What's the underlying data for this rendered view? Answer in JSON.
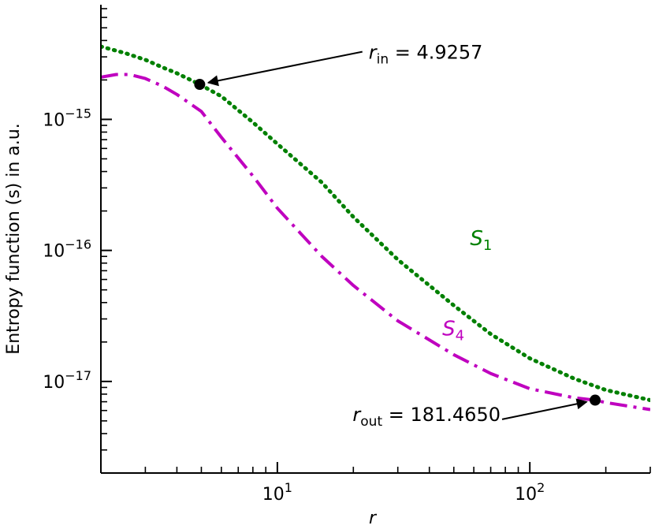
{
  "chart_data": {
    "type": "line",
    "title": "",
    "xlabel": "r",
    "ylabel": "Entropy function (s) in a.u.",
    "xscale": "log",
    "yscale": "log",
    "xlim": [
      2.0,
      300.0
    ],
    "ylim": [
      2e-18,
      7.5e-15
    ],
    "x_ticks": [
      {
        "value": 10,
        "base": "10",
        "exp": "1"
      },
      {
        "value": 100,
        "base": "10",
        "exp": "2"
      }
    ],
    "y_ticks": [
      {
        "value": 1e-15,
        "base": "10",
        "exp": "−15"
      },
      {
        "value": 1e-16,
        "base": "10",
        "exp": "−16"
      },
      {
        "value": 1e-17,
        "base": "10",
        "exp": "−17"
      }
    ],
    "grid": false,
    "series": [
      {
        "name": "S",
        "sub": "1",
        "color": "#008000",
        "style": "dotted",
        "x": [
          2.0,
          2.5,
          3.0,
          3.5,
          4.0,
          4.9257,
          6.0,
          8.0,
          10.0,
          15.0,
          20.0,
          30.0,
          50.0,
          70.0,
          100.0,
          150.0,
          200.0,
          300.0
        ],
        "y": [
          3.6e-15,
          3.2e-15,
          2.85e-15,
          2.5e-15,
          2.25e-15,
          1.85e-15,
          1.5e-15,
          9.5e-16,
          6.5e-16,
          3.3e-16,
          1.8e-16,
          8.5e-17,
          3.8e-17,
          2.3e-17,
          1.5e-17,
          1.05e-17,
          8.6e-18,
          7.2e-18
        ]
      },
      {
        "name": "S",
        "sub": "4",
        "color": "#bf00bf",
        "style": "dashdot",
        "x": [
          2.0,
          2.3,
          2.6,
          3.0,
          3.5,
          4.0,
          5.0,
          6.0,
          8.0,
          10.0,
          15.0,
          20.0,
          30.0,
          50.0,
          70.0,
          100.0,
          150.0,
          181.465,
          200.0,
          300.0
        ],
        "y": [
          2.1e-15,
          2.2e-15,
          2.2e-15,
          2.05e-15,
          1.8e-15,
          1.55e-15,
          1.15e-15,
          7.3e-16,
          3.7e-16,
          2.1e-16,
          9e-17,
          5.4e-17,
          2.9e-17,
          1.6e-17,
          1.15e-17,
          8.8e-18,
          7.5e-18,
          7.2e-18,
          6.9e-18,
          6.1e-18
        ]
      }
    ],
    "series_labels": [
      {
        "text": "S",
        "sub": "1",
        "x": 58,
        "y": 1.1e-16,
        "color": "#008000"
      },
      {
        "text": "S",
        "sub": "4",
        "x": 45,
        "y": 2.25e-17,
        "color": "#bf00bf"
      }
    ],
    "annotations": [
      {
        "label_main": "r",
        "label_sub": "in",
        "label_value": " = 4.9257",
        "point": {
          "x": 4.9257,
          "y": 1.85e-15
        },
        "text_at": {
          "x": 23,
          "y": 2.9e-15
        },
        "align": "left"
      },
      {
        "label_main": "r",
        "label_sub": "out",
        "label_value": " = 181.4650",
        "point": {
          "x": 181.465,
          "y": 7.2e-18
        },
        "text_at": {
          "x": 39,
          "y": 5e-18
        },
        "align": "center"
      }
    ]
  }
}
